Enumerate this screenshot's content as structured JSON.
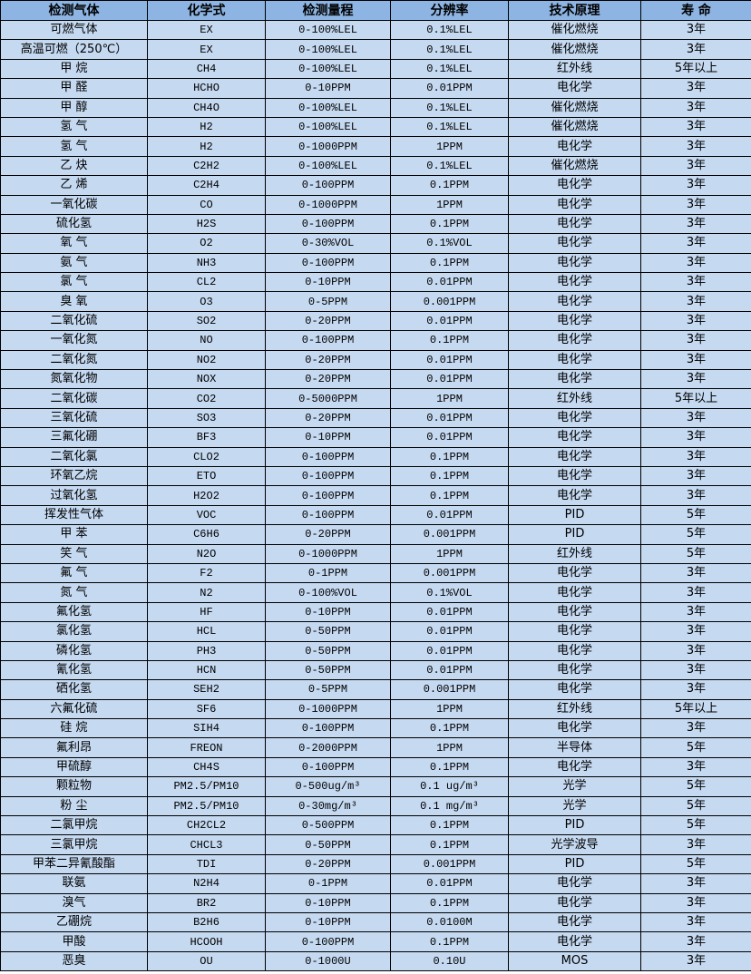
{
  "headers": [
    "检测气体",
    "化学式",
    "检测量程",
    "分辨率",
    "技术原理",
    "寿 命"
  ],
  "rows": [
    [
      "可燃气体",
      "EX",
      "0-100%LEL",
      "0.1%LEL",
      "催化燃烧",
      "3年"
    ],
    [
      "高温可燃（250℃）",
      "EX",
      "0-100%LEL",
      "0.1%LEL",
      "催化燃烧",
      "3年"
    ],
    [
      "甲 烷",
      "CH4",
      "0-100%LEL",
      "0.1%LEL",
      "红外线",
      "5年以上"
    ],
    [
      "甲 醛",
      "HCHO",
      "0-10PPM",
      "0.01PPM",
      "电化学",
      "3年"
    ],
    [
      "甲 醇",
      "CH4O",
      "0-100%LEL",
      "0.1%LEL",
      "催化燃烧",
      "3年"
    ],
    [
      "氢 气",
      "H2",
      "0-100%LEL",
      "0.1%LEL",
      "催化燃烧",
      "3年"
    ],
    [
      "氢 气",
      "H2",
      "0-1000PPM",
      "1PPM",
      "电化学",
      "3年"
    ],
    [
      "乙 炔",
      "C2H2",
      "0-100%LEL",
      "0.1%LEL",
      "催化燃烧",
      "3年"
    ],
    [
      "乙 烯",
      "C2H4",
      "0-100PPM",
      "0.1PPM",
      "电化学",
      "3年"
    ],
    [
      "一氧化碳",
      "CO",
      "0-1000PPM",
      "1PPM",
      "电化学",
      "3年"
    ],
    [
      "硫化氢",
      "H2S",
      "0-100PPM",
      "0.1PPM",
      "电化学",
      "3年"
    ],
    [
      "氧 气",
      "O2",
      "0-30%VOL",
      "0.1%VOL",
      "电化学",
      "3年"
    ],
    [
      "氨 气",
      "NH3",
      "0-100PPM",
      "0.1PPM",
      "电化学",
      "3年"
    ],
    [
      "氯 气",
      "CL2",
      "0-10PPM",
      "0.01PPM",
      "电化学",
      "3年"
    ],
    [
      "臭 氧",
      "O3",
      "0-5PPM",
      "0.001PPM",
      "电化学",
      "3年"
    ],
    [
      "二氧化硫",
      "SO2",
      "0-20PPM",
      "0.01PPM",
      "电化学",
      "3年"
    ],
    [
      "一氧化氮",
      "NO",
      "0-100PPM",
      "0.1PPM",
      "电化学",
      "3年"
    ],
    [
      "二氧化氮",
      "NO2",
      "0-20PPM",
      "0.01PPM",
      "电化学",
      "3年"
    ],
    [
      "氮氧化物",
      "NOX",
      "0-20PPM",
      "0.01PPM",
      "电化学",
      "3年"
    ],
    [
      "二氧化碳",
      "CO2",
      "0-5000PPM",
      "1PPM",
      "红外线",
      "5年以上"
    ],
    [
      "三氧化硫",
      "SO3",
      "0-20PPM",
      "0.01PPM",
      "电化学",
      "3年"
    ],
    [
      "三氟化硼",
      "BF3",
      "0-10PPM",
      "0.01PPM",
      "电化学",
      "3年"
    ],
    [
      "二氧化氯",
      "CLO2",
      "0-100PPM",
      "0.1PPM",
      "电化学",
      "3年"
    ],
    [
      "环氧乙烷",
      "ETO",
      "0-100PPM",
      "0.1PPM",
      "电化学",
      "3年"
    ],
    [
      "过氧化氢",
      "H2O2",
      "0-100PPM",
      "0.1PPM",
      "电化学",
      "3年"
    ],
    [
      "挥发性气体",
      "VOC",
      "0-100PPM",
      "0.01PPM",
      "PID",
      "5年"
    ],
    [
      "甲 苯",
      "C6H6",
      "0-20PPM",
      "0.001PPM",
      "PID",
      "5年"
    ],
    [
      "笑 气",
      "N2O",
      "0-1000PPM",
      "1PPM",
      "红外线",
      "5年"
    ],
    [
      "氟 气",
      "F2",
      "0-1PPM",
      "0.001PPM",
      "电化学",
      "3年"
    ],
    [
      "氮 气",
      "N2",
      "0-100%VOL",
      "0.1%VOL",
      "电化学",
      "3年"
    ],
    [
      "氟化氢",
      "HF",
      "0-10PPM",
      "0.01PPM",
      "电化学",
      "3年"
    ],
    [
      "氯化氢",
      "HCL",
      "0-50PPM",
      "0.01PPM",
      "电化学",
      "3年"
    ],
    [
      "磷化氢",
      "PH3",
      "0-50PPM",
      "0.01PPM",
      "电化学",
      "3年"
    ],
    [
      "氰化氢",
      "HCN",
      "0-50PPM",
      "0.01PPM",
      "电化学",
      "3年"
    ],
    [
      "硒化氢",
      "SEH2",
      "0-5PPM",
      "0.001PPM",
      "电化学",
      "3年"
    ],
    [
      "六氟化硫",
      "SF6",
      "0-1000PPM",
      "1PPM",
      "红外线",
      "5年以上"
    ],
    [
      "硅 烷",
      "SIH4",
      "0-100PPM",
      "0.1PPM",
      "电化学",
      "3年"
    ],
    [
      "氟利昂",
      "FREON",
      "0-2000PPM",
      "1PPM",
      "半导体",
      "5年"
    ],
    [
      "甲硫醇",
      "CH4S",
      "0-100PPM",
      "0.1PPM",
      "电化学",
      "3年"
    ],
    [
      "颗粒物",
      "PM2.5/PM10",
      "0-500ug/m³",
      "0.1 ug/m³",
      "光学",
      "5年"
    ],
    [
      "粉 尘",
      "PM2.5/PM10",
      "0-30mg/m³",
      "0.1 mg/m³",
      "光学",
      "5年"
    ],
    [
      "二氯甲烷",
      "CH2CL2",
      "0-500PPM",
      "0.1PPM",
      "PID",
      "5年"
    ],
    [
      "三氯甲烷",
      "CHCL3",
      "0-50PPM",
      "0.1PPM",
      "光学波导",
      "3年"
    ],
    [
      "甲苯二异氰酸酯",
      "TDI",
      "0-20PPM",
      "0.001PPM",
      "PID",
      "5年"
    ],
    [
      "联氨",
      "N2H4",
      "0-1PPM",
      "0.01PPM",
      "电化学",
      "3年"
    ],
    [
      "溴气",
      "BR2",
      "0-10PPM",
      "0.1PPM",
      "电化学",
      "3年"
    ],
    [
      "乙硼烷",
      "B2H6",
      "0-10PPM",
      "0.0100M",
      "电化学",
      "3年"
    ],
    [
      "甲酸",
      "HCOOH",
      "0-100PPM",
      "0.1PPM",
      "电化学",
      "3年"
    ],
    [
      "恶臭",
      "OU",
      "0-1000U",
      "0.10U",
      "MOS",
      "3年"
    ]
  ]
}
